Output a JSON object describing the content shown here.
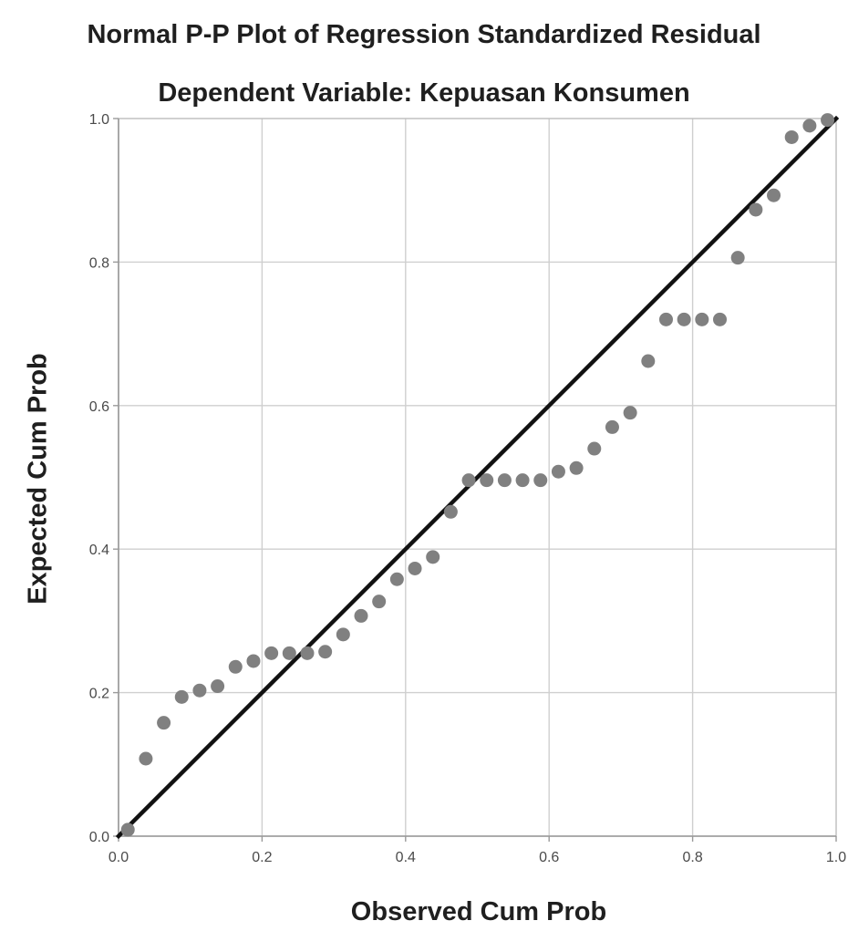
{
  "chart_data": {
    "type": "scatter",
    "title": "Normal P-P Plot of Regression Standardized Residual",
    "subtitle": "Dependent Variable: Kepuasan Konsumen",
    "xlabel": "Observed Cum Prob",
    "ylabel": "Expected Cum Prob",
    "xlim": [
      0.0,
      1.0
    ],
    "ylim": [
      0.0,
      1.0
    ],
    "grid": true,
    "x_ticks": [
      "0.0",
      "0.2",
      "0.4",
      "0.6",
      "0.8",
      "1.0"
    ],
    "y_ticks": [
      "0.0",
      "0.2",
      "0.4",
      "0.6",
      "0.8",
      "1.0"
    ],
    "reference_line": {
      "from": [
        0.0,
        0.0
      ],
      "to": [
        1.0,
        1.0
      ],
      "color": "#111111"
    },
    "point_color": "#808080",
    "points": [
      {
        "x": 0.013,
        "y": 0.009
      },
      {
        "x": 0.038,
        "y": 0.108
      },
      {
        "x": 0.063,
        "y": 0.158
      },
      {
        "x": 0.088,
        "y": 0.194
      },
      {
        "x": 0.113,
        "y": 0.203
      },
      {
        "x": 0.138,
        "y": 0.209
      },
      {
        "x": 0.163,
        "y": 0.236
      },
      {
        "x": 0.188,
        "y": 0.244
      },
      {
        "x": 0.213,
        "y": 0.255
      },
      {
        "x": 0.238,
        "y": 0.255
      },
      {
        "x": 0.263,
        "y": 0.255
      },
      {
        "x": 0.288,
        "y": 0.257
      },
      {
        "x": 0.313,
        "y": 0.281
      },
      {
        "x": 0.338,
        "y": 0.307
      },
      {
        "x": 0.363,
        "y": 0.327
      },
      {
        "x": 0.388,
        "y": 0.358
      },
      {
        "x": 0.413,
        "y": 0.373
      },
      {
        "x": 0.438,
        "y": 0.389
      },
      {
        "x": 0.463,
        "y": 0.452
      },
      {
        "x": 0.488,
        "y": 0.496
      },
      {
        "x": 0.513,
        "y": 0.496
      },
      {
        "x": 0.538,
        "y": 0.496
      },
      {
        "x": 0.563,
        "y": 0.496
      },
      {
        "x": 0.588,
        "y": 0.496
      },
      {
        "x": 0.613,
        "y": 0.508
      },
      {
        "x": 0.638,
        "y": 0.513
      },
      {
        "x": 0.663,
        "y": 0.54
      },
      {
        "x": 0.688,
        "y": 0.57
      },
      {
        "x": 0.713,
        "y": 0.59
      },
      {
        "x": 0.738,
        "y": 0.662
      },
      {
        "x": 0.763,
        "y": 0.72
      },
      {
        "x": 0.788,
        "y": 0.72
      },
      {
        "x": 0.813,
        "y": 0.72
      },
      {
        "x": 0.838,
        "y": 0.72
      },
      {
        "x": 0.863,
        "y": 0.806
      },
      {
        "x": 0.888,
        "y": 0.873
      },
      {
        "x": 0.913,
        "y": 0.893
      },
      {
        "x": 0.938,
        "y": 0.974
      },
      {
        "x": 0.963,
        "y": 0.99
      },
      {
        "x": 0.988,
        "y": 0.998
      }
    ]
  }
}
